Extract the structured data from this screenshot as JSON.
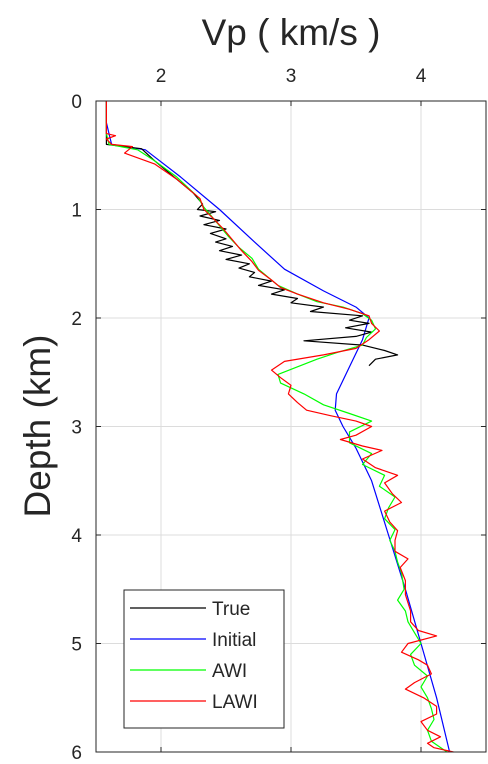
{
  "chart_data": {
    "type": "line",
    "title": "",
    "xlabel": "Vp ( km/s )",
    "ylabel": "Depth (km)",
    "xlim": [
      1.5,
      4.5
    ],
    "ylim": [
      0,
      6
    ],
    "y_reversed": true,
    "x_axis_position": "top",
    "xticks": [
      2,
      3,
      4
    ],
    "xtick_labels": [
      "2",
      "3",
      "4"
    ],
    "yticks": [
      0,
      1,
      2,
      3,
      4,
      5,
      6
    ],
    "ytick_labels": [
      "0",
      "1",
      "2",
      "3",
      "4",
      "5",
      "6"
    ],
    "grid": true,
    "legend_position": "bottom-left",
    "series": [
      {
        "name": "True",
        "color": "#000000",
        "points": [
          [
            1.58,
            0
          ],
          [
            1.58,
            0.3
          ],
          [
            1.58,
            0.4
          ],
          [
            1.85,
            0.44
          ],
          [
            1.95,
            0.55
          ],
          [
            2.1,
            0.7
          ],
          [
            2.25,
            0.85
          ],
          [
            2.32,
            0.95
          ],
          [
            2.28,
            1.0
          ],
          [
            2.42,
            1.02
          ],
          [
            2.3,
            1.06
          ],
          [
            2.45,
            1.1
          ],
          [
            2.33,
            1.14
          ],
          [
            2.5,
            1.18
          ],
          [
            2.38,
            1.22
          ],
          [
            2.5,
            1.27
          ],
          [
            2.42,
            1.3
          ],
          [
            2.55,
            1.34
          ],
          [
            2.45,
            1.38
          ],
          [
            2.62,
            1.42
          ],
          [
            2.5,
            1.46
          ],
          [
            2.68,
            1.5
          ],
          [
            2.6,
            1.54
          ],
          [
            2.72,
            1.58
          ],
          [
            2.68,
            1.62
          ],
          [
            2.85,
            1.66
          ],
          [
            2.75,
            1.7
          ],
          [
            2.95,
            1.74
          ],
          [
            2.85,
            1.78
          ],
          [
            3.05,
            1.82
          ],
          [
            3.0,
            1.86
          ],
          [
            3.25,
            1.9
          ],
          [
            3.15,
            1.94
          ],
          [
            3.55,
            1.98
          ],
          [
            3.45,
            2.02
          ],
          [
            3.6,
            2.05
          ],
          [
            3.42,
            2.09
          ],
          [
            3.62,
            2.13
          ],
          [
            3.5,
            2.17
          ],
          [
            3.1,
            2.21
          ],
          [
            3.55,
            2.25
          ],
          [
            3.72,
            2.3
          ],
          [
            3.82,
            2.34
          ],
          [
            3.65,
            2.38
          ],
          [
            3.6,
            2.44
          ]
        ]
      },
      {
        "name": "Initial",
        "color": "#0000ff",
        "points": [
          [
            1.58,
            0
          ],
          [
            1.58,
            0.2
          ],
          [
            1.6,
            0.3
          ],
          [
            1.62,
            0.4
          ],
          [
            1.88,
            0.45
          ],
          [
            2.15,
            0.7
          ],
          [
            2.45,
            1.0
          ],
          [
            2.72,
            1.3
          ],
          [
            2.95,
            1.55
          ],
          [
            3.25,
            1.75
          ],
          [
            3.5,
            1.9
          ],
          [
            3.6,
            2.0
          ],
          [
            3.55,
            2.2
          ],
          [
            3.45,
            2.45
          ],
          [
            3.35,
            2.7
          ],
          [
            3.34,
            2.85
          ],
          [
            3.4,
            3.0
          ],
          [
            3.5,
            3.2
          ],
          [
            3.62,
            3.5
          ],
          [
            3.75,
            4.0
          ],
          [
            3.88,
            4.5
          ],
          [
            4.0,
            5.0
          ],
          [
            4.12,
            5.5
          ],
          [
            4.22,
            6.0
          ]
        ]
      },
      {
        "name": "AWI",
        "color": "#00ff00",
        "points": [
          [
            1.58,
            0
          ],
          [
            1.58,
            0.3
          ],
          [
            1.6,
            0.4
          ],
          [
            1.82,
            0.45
          ],
          [
            1.95,
            0.55
          ],
          [
            2.12,
            0.7
          ],
          [
            2.28,
            0.88
          ],
          [
            2.33,
            0.98
          ],
          [
            2.38,
            1.05
          ],
          [
            2.45,
            1.15
          ],
          [
            2.52,
            1.25
          ],
          [
            2.6,
            1.35
          ],
          [
            2.7,
            1.45
          ],
          [
            2.75,
            1.55
          ],
          [
            2.82,
            1.62
          ],
          [
            2.9,
            1.7
          ],
          [
            3.05,
            1.78
          ],
          [
            3.2,
            1.85
          ],
          [
            3.4,
            1.9
          ],
          [
            3.55,
            1.96
          ],
          [
            3.62,
            2.02
          ],
          [
            3.65,
            2.1
          ],
          [
            3.58,
            2.18
          ],
          [
            3.55,
            2.25
          ],
          [
            3.35,
            2.32
          ],
          [
            3.2,
            2.38
          ],
          [
            3.05,
            2.45
          ],
          [
            2.9,
            2.52
          ],
          [
            2.92,
            2.6
          ],
          [
            3.1,
            2.7
          ],
          [
            3.25,
            2.8
          ],
          [
            3.45,
            2.88
          ],
          [
            3.62,
            2.95
          ],
          [
            3.45,
            3.05
          ],
          [
            3.45,
            3.15
          ],
          [
            3.62,
            3.25
          ],
          [
            3.55,
            3.35
          ],
          [
            3.72,
            3.45
          ],
          [
            3.68,
            3.55
          ],
          [
            3.8,
            3.65
          ],
          [
            3.75,
            3.75
          ],
          [
            3.72,
            3.85
          ],
          [
            3.8,
            3.95
          ],
          [
            3.76,
            4.05
          ],
          [
            3.8,
            4.15
          ],
          [
            3.82,
            4.25
          ],
          [
            3.85,
            4.35
          ],
          [
            3.87,
            4.5
          ],
          [
            3.82,
            4.6
          ],
          [
            3.88,
            4.7
          ],
          [
            3.9,
            4.8
          ],
          [
            3.95,
            4.9
          ],
          [
            4.0,
            5.0
          ],
          [
            3.92,
            5.1
          ],
          [
            3.95,
            5.2
          ],
          [
            4.05,
            5.3
          ],
          [
            4.0,
            5.4
          ],
          [
            4.05,
            5.5
          ],
          [
            4.08,
            5.6
          ],
          [
            4.1,
            5.7
          ],
          [
            4.05,
            5.8
          ],
          [
            4.08,
            5.9
          ],
          [
            4.2,
            6.0
          ]
        ]
      },
      {
        "name": "LAWI",
        "color": "#ff0000",
        "points": [
          [
            1.58,
            0
          ],
          [
            1.58,
            0.3
          ],
          [
            1.65,
            0.32
          ],
          [
            1.58,
            0.35
          ],
          [
            1.62,
            0.4
          ],
          [
            1.78,
            0.42
          ],
          [
            1.72,
            0.48
          ],
          [
            1.95,
            0.58
          ],
          [
            2.12,
            0.72
          ],
          [
            2.3,
            0.9
          ],
          [
            2.33,
            1.0
          ],
          [
            2.4,
            1.08
          ],
          [
            2.48,
            1.18
          ],
          [
            2.55,
            1.28
          ],
          [
            2.62,
            1.38
          ],
          [
            2.7,
            1.48
          ],
          [
            2.75,
            1.56
          ],
          [
            2.85,
            1.65
          ],
          [
            2.92,
            1.72
          ],
          [
            3.05,
            1.78
          ],
          [
            3.25,
            1.86
          ],
          [
            3.45,
            1.92
          ],
          [
            3.6,
            1.98
          ],
          [
            3.62,
            2.05
          ],
          [
            3.68,
            2.12
          ],
          [
            3.6,
            2.2
          ],
          [
            3.5,
            2.28
          ],
          [
            3.25,
            2.34
          ],
          [
            2.95,
            2.4
          ],
          [
            2.85,
            2.48
          ],
          [
            2.92,
            2.55
          ],
          [
            3.0,
            2.62
          ],
          [
            2.98,
            2.7
          ],
          [
            3.05,
            2.78
          ],
          [
            3.12,
            2.85
          ],
          [
            3.3,
            2.9
          ],
          [
            3.5,
            2.95
          ],
          [
            3.62,
            3.0
          ],
          [
            3.5,
            3.08
          ],
          [
            3.38,
            3.12
          ],
          [
            3.55,
            3.18
          ],
          [
            3.7,
            3.22
          ],
          [
            3.55,
            3.3
          ],
          [
            3.65,
            3.38
          ],
          [
            3.82,
            3.45
          ],
          [
            3.72,
            3.52
          ],
          [
            3.78,
            3.62
          ],
          [
            3.85,
            3.7
          ],
          [
            3.72,
            3.78
          ],
          [
            3.76,
            3.88
          ],
          [
            3.82,
            3.96
          ],
          [
            3.8,
            4.05
          ],
          [
            3.8,
            4.15
          ],
          [
            3.9,
            4.22
          ],
          [
            3.84,
            4.3
          ],
          [
            3.88,
            4.42
          ],
          [
            3.88,
            4.55
          ],
          [
            3.92,
            4.7
          ],
          [
            3.92,
            4.8
          ],
          [
            3.98,
            4.88
          ],
          [
            4.12,
            4.93
          ],
          [
            3.9,
            5.0
          ],
          [
            3.85,
            5.08
          ],
          [
            3.98,
            5.15
          ],
          [
            4.05,
            5.2
          ],
          [
            4.08,
            5.28
          ],
          [
            3.95,
            5.36
          ],
          [
            3.88,
            5.42
          ],
          [
            4.02,
            5.5
          ],
          [
            4.12,
            5.58
          ],
          [
            4.12,
            5.65
          ],
          [
            4.0,
            5.72
          ],
          [
            4.05,
            5.8
          ],
          [
            4.15,
            5.86
          ],
          [
            4.05,
            5.92
          ],
          [
            4.1,
            5.96
          ],
          [
            4.25,
            6.0
          ]
        ]
      }
    ]
  }
}
